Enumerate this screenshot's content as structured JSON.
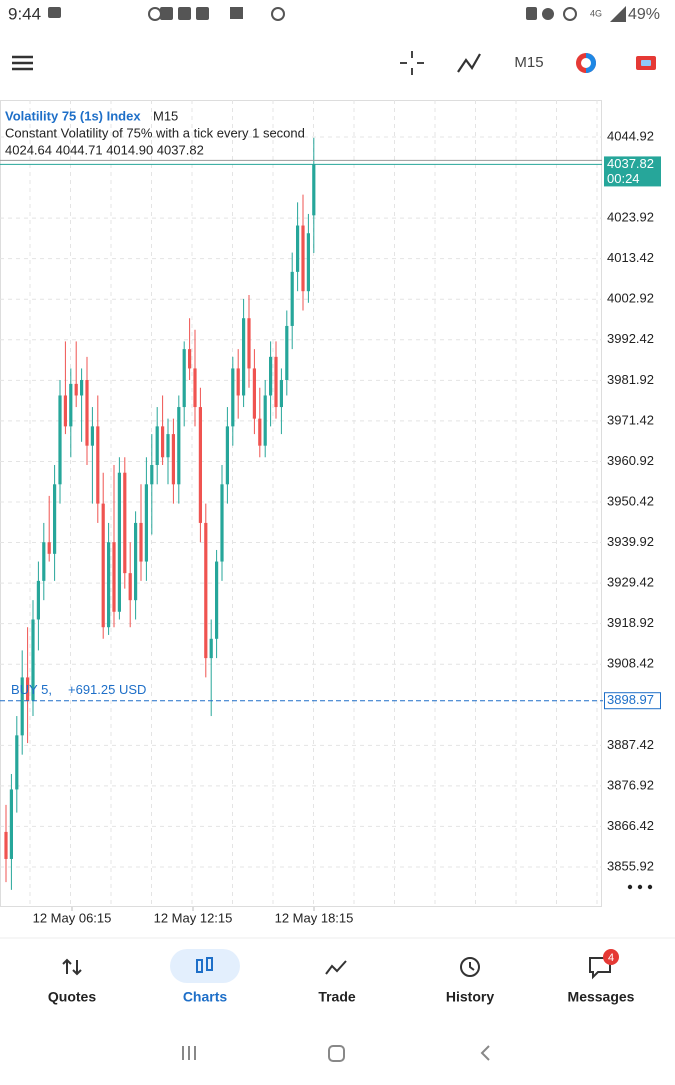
{
  "status_bar": {
    "time": "9:44",
    "network": "4G",
    "battery": "49%"
  },
  "toolbar": {
    "timeframe": "M15"
  },
  "chart_data": {
    "type": "candlestick",
    "title": "Volatility 75 (1s) Index",
    "title_timeframe": "M15",
    "subtitle": "Constant Volatility of 75% with a tick every 1 second",
    "ohlc_text": "4024.64 4044.71 4014.90 4037.82",
    "x_labels": [
      "12 May 06:15",
      "12 May 12:15",
      "12 May 18:15"
    ],
    "up_color": "#26a69a",
    "down_color": "#ef5350",
    "open": [
      3865,
      3858,
      3876,
      3890,
      3905,
      3899,
      3920,
      3930,
      3940,
      3937,
      3955,
      3978,
      3970,
      3981,
      3978,
      3982,
      3965,
      3970,
      3950,
      3918,
      3940,
      3922,
      3958,
      3932,
      3925,
      3945,
      3935,
      3955,
      3960,
      3970,
      3962,
      3968,
      3955,
      3975,
      3990,
      3985,
      3975,
      3945,
      3910,
      3915,
      3935,
      3955,
      3970,
      3985,
      3978,
      3998,
      3985,
      3972,
      3965,
      3978,
      3988,
      3975,
      3982,
      3996,
      4010,
      4022,
      4005,
      4024.64
    ],
    "high": [
      3872,
      3880,
      3895,
      3912,
      3918,
      3925,
      3935,
      3945,
      3952,
      3960,
      3982,
      3992,
      3985,
      3992,
      3985,
      3988,
      3975,
      3978,
      3958,
      3945,
      3960,
      3962,
      3962,
      3940,
      3948,
      3955,
      3962,
      3968,
      3975,
      3978,
      3972,
      3972,
      3978,
      3992,
      3998,
      3995,
      3980,
      3950,
      3920,
      3938,
      3960,
      3975,
      3988,
      3990,
      4003,
      4004,
      3990,
      3980,
      3982,
      3992,
      3992,
      3985,
      4000,
      4015,
      4028,
      4030,
      4025,
      4044.71
    ],
    "low": [
      3852,
      3850,
      3870,
      3885,
      3888,
      3895,
      3912,
      3925,
      3935,
      3930,
      3950,
      3968,
      3962,
      3975,
      3966,
      3960,
      3950,
      3945,
      3915,
      3916,
      3918,
      3920,
      3928,
      3918,
      3920,
      3930,
      3930,
      3942,
      3955,
      3960,
      3955,
      3950,
      3950,
      3970,
      3982,
      3970,
      3940,
      3905,
      3895,
      3910,
      3930,
      3950,
      3965,
      3972,
      3975,
      3980,
      3968,
      3962,
      3962,
      3970,
      3972,
      3968,
      3978,
      3990,
      4005,
      4000,
      4002,
      4014.9
    ],
    "close": [
      3858,
      3876,
      3890,
      3905,
      3899,
      3920,
      3930,
      3940,
      3937,
      3955,
      3978,
      3970,
      3981,
      3978,
      3982,
      3965,
      3970,
      3950,
      3918,
      3940,
      3922,
      3958,
      3932,
      3925,
      3945,
      3935,
      3955,
      3960,
      3970,
      3962,
      3968,
      3955,
      3975,
      3990,
      3985,
      3975,
      3945,
      3910,
      3915,
      3935,
      3955,
      3970,
      3985,
      3978,
      3998,
      3985,
      3972,
      3965,
      3978,
      3988,
      3975,
      3982,
      3996,
      4010,
      4022,
      4005,
      4020,
      4037.82
    ],
    "ylim": [
      3845.56,
      4054.5
    ],
    "yticks": [
      4044.92,
      4023.92,
      4013.42,
      4002.92,
      3992.42,
      3981.92,
      3971.42,
      3960.92,
      3950.42,
      3939.92,
      3929.42,
      3918.92,
      3908.42,
      3887.42,
      3876.92,
      3866.42,
      3855.92
    ],
    "grid": true,
    "last_price": 4037.82,
    "countdown": "00:24",
    "position": {
      "label": "BUY 5,",
      "profit": "+691.25 USD",
      "price": 3898.97
    }
  },
  "nav": {
    "items": [
      "Quotes",
      "Charts",
      "Trade",
      "History",
      "Messages"
    ],
    "active": 1,
    "badge": "4"
  }
}
